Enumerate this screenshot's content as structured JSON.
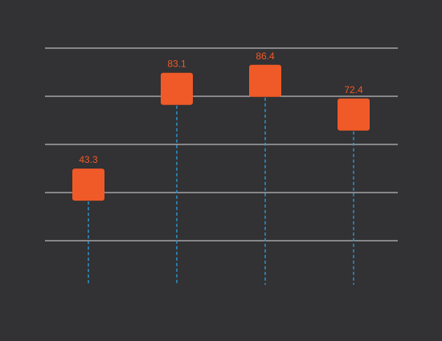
{
  "chart_data": {
    "type": "scatter",
    "marker": "rounded-square",
    "stems": "dashed vertical drop lines",
    "categories": [
      "",
      "",
      "",
      ""
    ],
    "values": [
      43.3,
      83.1,
      86.4,
      72.4
    ],
    "data_labels": [
      "43.3",
      "83.1",
      "86.4",
      "72.4"
    ],
    "title": "",
    "xlabel": "",
    "ylabel": "",
    "ylim": [
      0,
      100
    ],
    "grid": "horizontal lines",
    "legend": "none",
    "colors": {
      "background": "#323133",
      "marker": "#F05A28",
      "label": "#F05A28",
      "stem": "#2E9BD6",
      "grid": "#DCDCDC"
    }
  }
}
